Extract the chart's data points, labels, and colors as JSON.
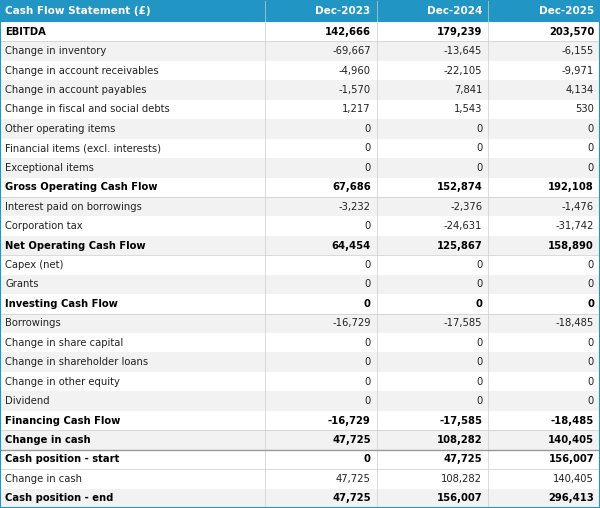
{
  "title": "Cash Flow Statement (£)",
  "columns": [
    "Dec-2023",
    "Dec-2024",
    "Dec-2025"
  ],
  "rows": [
    {
      "label": "EBITDA",
      "values": [
        "142,666",
        "179,239",
        "203,570"
      ],
      "bold": true,
      "bg": "#ffffff",
      "top_border": false
    },
    {
      "label": "Change in inventory",
      "values": [
        "-69,667",
        "-13,645",
        "-6,155"
      ],
      "bold": false,
      "bg": "#f2f2f2",
      "top_border": false
    },
    {
      "label": "Change in account receivables",
      "values": [
        "-4,960",
        "-22,105",
        "-9,971"
      ],
      "bold": false,
      "bg": "#ffffff",
      "top_border": false
    },
    {
      "label": "Change in account payables",
      "values": [
        "-1,570",
        "7,841",
        "4,134"
      ],
      "bold": false,
      "bg": "#f2f2f2",
      "top_border": false
    },
    {
      "label": "Change in fiscal and social debts",
      "values": [
        "1,217",
        "1,543",
        "530"
      ],
      "bold": false,
      "bg": "#ffffff",
      "top_border": false
    },
    {
      "label": "Other operating items",
      "values": [
        "0",
        "0",
        "0"
      ],
      "bold": false,
      "bg": "#f2f2f2",
      "top_border": false
    },
    {
      "label": "Financial items (excl. interests)",
      "values": [
        "0",
        "0",
        "0"
      ],
      "bold": false,
      "bg": "#ffffff",
      "top_border": false
    },
    {
      "label": "Exceptional items",
      "values": [
        "0",
        "0",
        "0"
      ],
      "bold": false,
      "bg": "#f2f2f2",
      "top_border": false
    },
    {
      "label": "Gross Operating Cash Flow",
      "values": [
        "67,686",
        "152,874",
        "192,108"
      ],
      "bold": true,
      "bg": "#ffffff",
      "top_border": false
    },
    {
      "label": "Interest paid on borrowings",
      "values": [
        "-3,232",
        "-2,376",
        "-1,476"
      ],
      "bold": false,
      "bg": "#f2f2f2",
      "top_border": false
    },
    {
      "label": "Corporation tax",
      "values": [
        "0",
        "-24,631",
        "-31,742"
      ],
      "bold": false,
      "bg": "#ffffff",
      "top_border": false
    },
    {
      "label": "Net Operating Cash Flow",
      "values": [
        "64,454",
        "125,867",
        "158,890"
      ],
      "bold": true,
      "bg": "#f2f2f2",
      "top_border": false
    },
    {
      "label": "Capex (net)",
      "values": [
        "0",
        "0",
        "0"
      ],
      "bold": false,
      "bg": "#ffffff",
      "top_border": false
    },
    {
      "label": "Grants",
      "values": [
        "0",
        "0",
        "0"
      ],
      "bold": false,
      "bg": "#f2f2f2",
      "top_border": false
    },
    {
      "label": "Investing Cash Flow",
      "values": [
        "0",
        "0",
        "0"
      ],
      "bold": true,
      "bg": "#ffffff",
      "top_border": false
    },
    {
      "label": "Borrowings",
      "values": [
        "-16,729",
        "-17,585",
        "-18,485"
      ],
      "bold": false,
      "bg": "#f2f2f2",
      "top_border": false
    },
    {
      "label": "Change in share capital",
      "values": [
        "0",
        "0",
        "0"
      ],
      "bold": false,
      "bg": "#ffffff",
      "top_border": false
    },
    {
      "label": "Change in shareholder loans",
      "values": [
        "0",
        "0",
        "0"
      ],
      "bold": false,
      "bg": "#f2f2f2",
      "top_border": false
    },
    {
      "label": "Change in other equity",
      "values": [
        "0",
        "0",
        "0"
      ],
      "bold": false,
      "bg": "#ffffff",
      "top_border": false
    },
    {
      "label": "Dividend",
      "values": [
        "0",
        "0",
        "0"
      ],
      "bold": false,
      "bg": "#f2f2f2",
      "top_border": false
    },
    {
      "label": "Financing Cash Flow",
      "values": [
        "-16,729",
        "-17,585",
        "-18,485"
      ],
      "bold": true,
      "bg": "#ffffff",
      "top_border": false
    },
    {
      "label": "Change in cash",
      "values": [
        "47,725",
        "108,282",
        "140,405"
      ],
      "bold": true,
      "bg": "#f2f2f2",
      "top_border": false
    },
    {
      "label": "Cash position - start",
      "values": [
        "0",
        "47,725",
        "156,007"
      ],
      "bold": true,
      "bg": "#ffffff",
      "top_border": true
    },
    {
      "label": "Change in cash",
      "values": [
        "47,725",
        "108,282",
        "140,405"
      ],
      "bold": false,
      "bg": "#ffffff",
      "top_border": false
    },
    {
      "label": "Cash position - end",
      "values": [
        "47,725",
        "156,007",
        "296,413"
      ],
      "bold": true,
      "bg": "#f2f2f2",
      "top_border": false
    }
  ],
  "header_bg": "#2196c4",
  "header_text_color": "#ffffff",
  "bold_text_color": "#000000",
  "normal_text_color": "#222222",
  "stripe_bg": "#f2f2f2",
  "white_bg": "#ffffff",
  "border_color": "#cccccc",
  "separator_color": "#888888"
}
